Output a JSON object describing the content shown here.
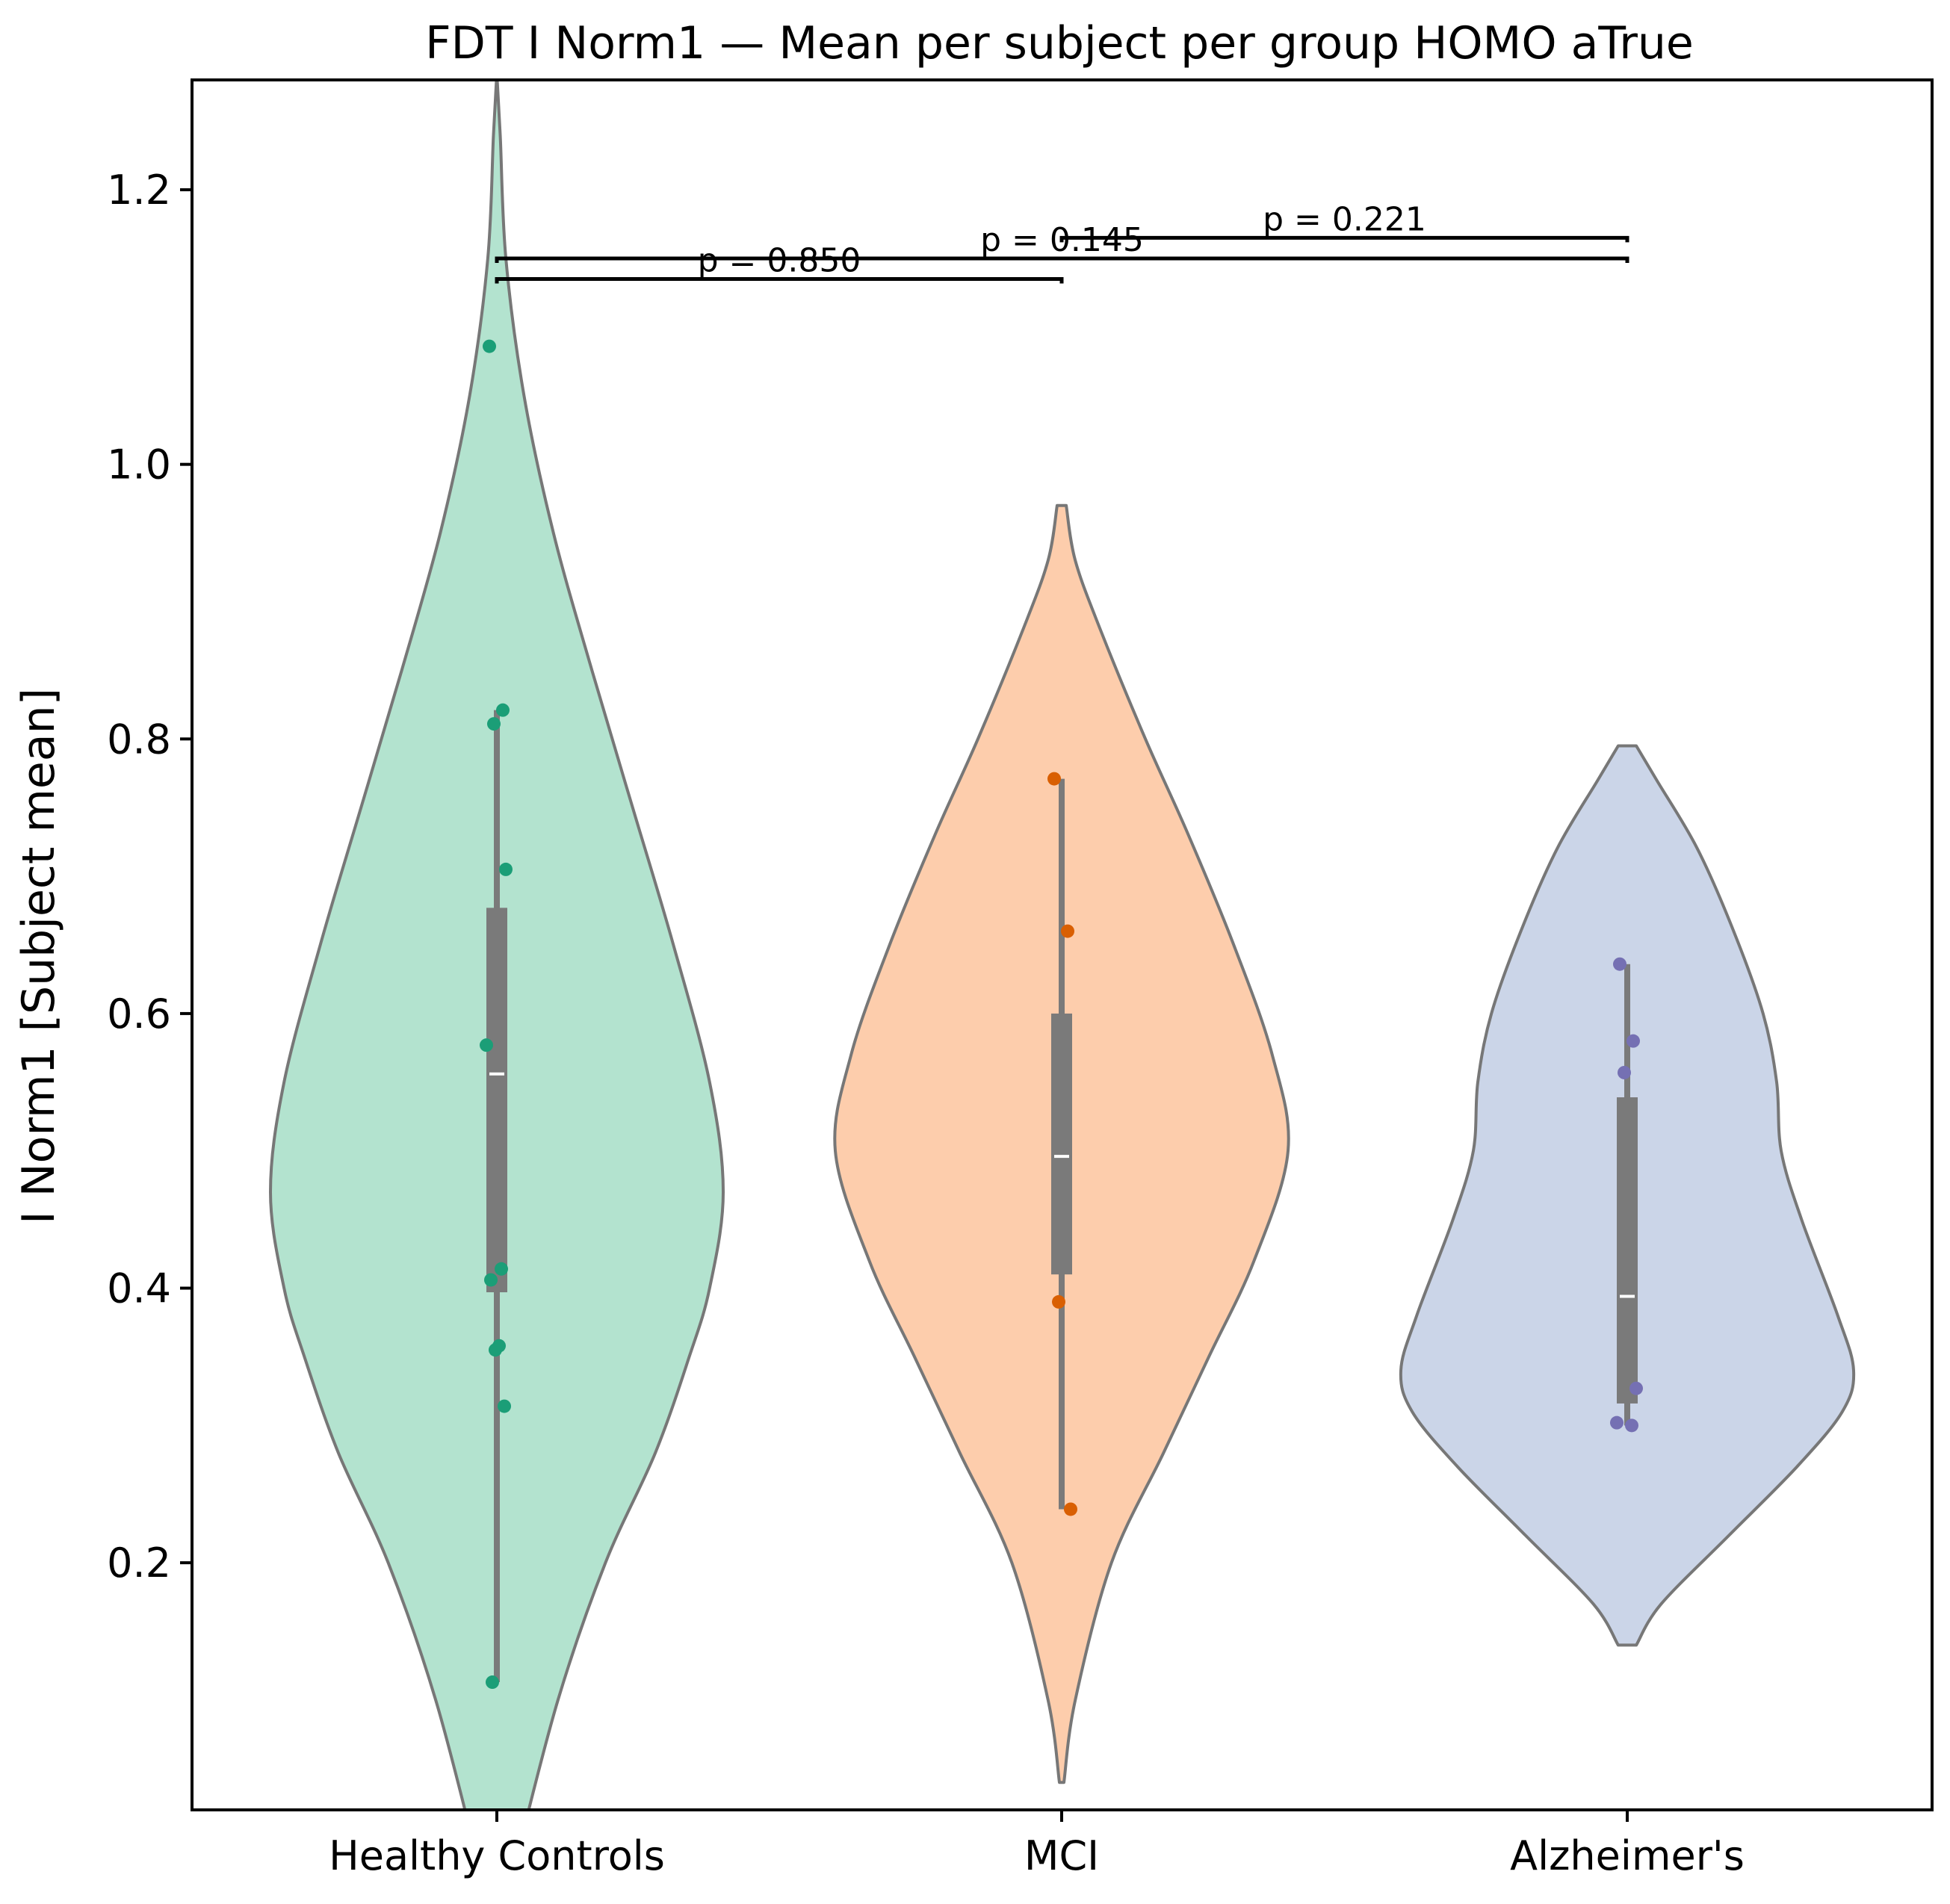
{
  "chart_data": {
    "type": "violin",
    "title": "FDT I Norm1 — Mean per subject per group HOMO aTrue",
    "xlabel": "",
    "ylabel": "I Norm1 [Subject mean]",
    "ylim": [
      0.02,
      1.28
    ],
    "yticks": [
      0.2,
      0.4,
      0.6,
      0.8,
      1.0,
      1.2
    ],
    "ytick_labels": [
      "0.2",
      "0.4",
      "0.6",
      "0.8",
      "1.0",
      "1.2"
    ],
    "categories": [
      "Healthy Controls",
      "MCI",
      "Alzheimer's"
    ],
    "groups": [
      {
        "name": "Healthy Controls",
        "fill": "#b3e3cf",
        "point_color": "#1b9e77",
        "points": [
          1.086,
          0.821,
          0.811,
          0.705,
          0.577,
          0.414,
          0.406,
          0.358,
          0.355,
          0.314,
          0.113
        ],
        "box": {
          "q1": 0.397,
          "median": 0.556,
          "q3": 0.677,
          "whisker_low": 0.113,
          "whisker_high": 0.821
        },
        "violin_profile": [
          [
            -0.02,
            0.08
          ],
          [
            0.1,
            0.27
          ],
          [
            0.2,
            0.48
          ],
          [
            0.28,
            0.7
          ],
          [
            0.35,
            0.85
          ],
          [
            0.4,
            0.94
          ],
          [
            0.47,
            1.0
          ],
          [
            0.55,
            0.94
          ],
          [
            0.65,
            0.78
          ],
          [
            0.75,
            0.6
          ],
          [
            0.85,
            0.42
          ],
          [
            0.95,
            0.25
          ],
          [
            1.05,
            0.12
          ],
          [
            1.15,
            0.04
          ],
          [
            1.24,
            0.015
          ],
          [
            1.285,
            0.0
          ]
        ]
      },
      {
        "name": "MCI",
        "fill": "#fdcdac",
        "point_color": "#d95f02",
        "points": [
          0.771,
          0.66,
          0.39,
          0.239
        ],
        "box": {
          "q1": 0.41,
          "median": 0.496,
          "q3": 0.6,
          "whisker_low": 0.239,
          "whisker_high": 0.771
        },
        "violin_profile": [
          [
            0.04,
            0.01
          ],
          [
            0.1,
            0.06
          ],
          [
            0.2,
            0.22
          ],
          [
            0.28,
            0.45
          ],
          [
            0.35,
            0.65
          ],
          [
            0.42,
            0.85
          ],
          [
            0.5,
            1.0
          ],
          [
            0.57,
            0.93
          ],
          [
            0.65,
            0.76
          ],
          [
            0.73,
            0.56
          ],
          [
            0.8,
            0.37
          ],
          [
            0.88,
            0.17
          ],
          [
            0.93,
            0.06
          ],
          [
            0.97,
            0.02
          ]
        ]
      },
      {
        "name": "Alzheimer's",
        "fill": "#cbd5e8",
        "point_color": "#7570b3",
        "points": [
          0.636,
          0.58,
          0.557,
          0.327,
          0.302,
          0.3
        ],
        "box": {
          "q1": 0.316,
          "median": 0.394,
          "q3": 0.539,
          "whisker_low": 0.3,
          "whisker_high": 0.636
        },
        "violin_profile": [
          [
            0.14,
            0.04
          ],
          [
            0.17,
            0.15
          ],
          [
            0.22,
            0.45
          ],
          [
            0.27,
            0.75
          ],
          [
            0.31,
            0.95
          ],
          [
            0.34,
            1.0
          ],
          [
            0.38,
            0.93
          ],
          [
            0.45,
            0.77
          ],
          [
            0.5,
            0.68
          ],
          [
            0.55,
            0.66
          ],
          [
            0.6,
            0.6
          ],
          [
            0.66,
            0.47
          ],
          [
            0.72,
            0.31
          ],
          [
            0.77,
            0.13
          ],
          [
            0.795,
            0.04
          ]
        ]
      }
    ],
    "comparisons": [
      {
        "from": 0,
        "to": 1,
        "y": 1.135,
        "label": "p = 0.850"
      },
      {
        "from": 0,
        "to": 2,
        "y": 1.15,
        "label": "p = 0.145"
      },
      {
        "from": 1,
        "to": 2,
        "y": 1.165,
        "label": "p = 0.221"
      }
    ],
    "colors": {
      "outline": "#777777",
      "box": "#7a7a7a",
      "median": "#ffffff",
      "axis": "#000000"
    },
    "grid": false,
    "legend": "none"
  }
}
